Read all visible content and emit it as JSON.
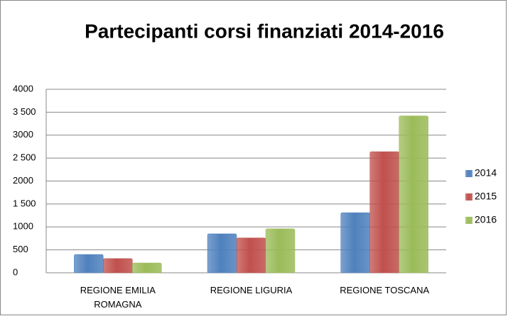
{
  "chart_data": {
    "type": "bar",
    "title": "Partecipanti corsi finanziati 2014-2016",
    "categories": [
      "REGIONE EMILIA ROMAGNA",
      "REGIONE LIGURIA",
      "REGIONE TOSCANA"
    ],
    "series": [
      {
        "name": "2014",
        "color": "#4f81bd",
        "values": [
          400,
          850,
          1310
        ]
      },
      {
        "name": "2015",
        "color": "#c0504d",
        "values": [
          310,
          760,
          2640
        ]
      },
      {
        "name": "2016",
        "color": "#9bbb59",
        "values": [
          215,
          960,
          3420
        ]
      }
    ],
    "ylim": [
      0,
      4000
    ],
    "yticks": [
      0,
      500,
      1000,
      {
        "value": 1500,
        "label": "1 500"
      },
      2000,
      {
        "value": 2500,
        "label": "2 500"
      },
      3000,
      {
        "value": 3500,
        "label": "3 500"
      },
      4000
    ],
    "grid": true,
    "legend": "right"
  }
}
